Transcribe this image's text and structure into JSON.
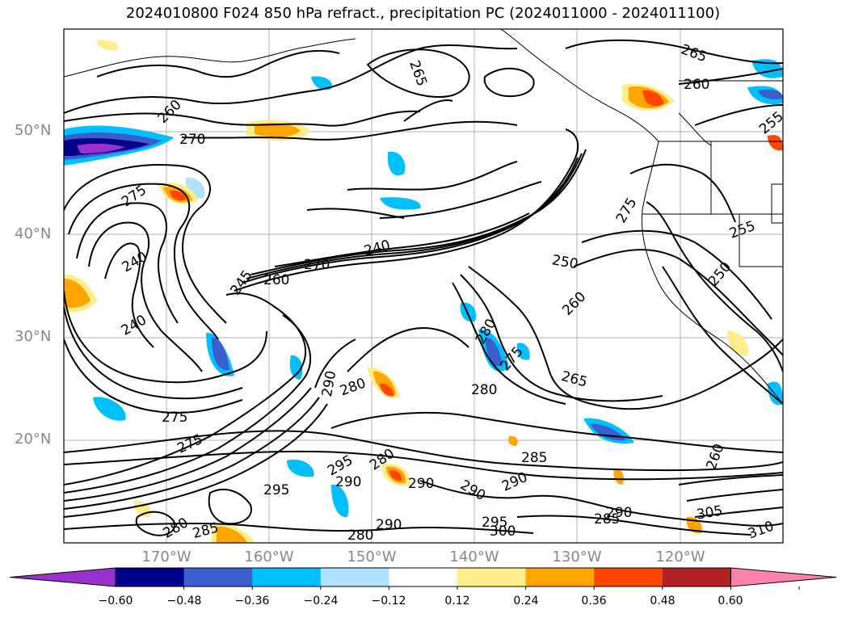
{
  "title": "2024010800 F024 850 hPa refract., precipitation PC (2024011000 - 2024011100)",
  "lat_labels": [
    "50°N",
    "40°N",
    "30°N",
    "20°N"
  ],
  "lon_labels": [
    "170°W",
    "160°W",
    "150°W",
    "140°W",
    "130°W",
    "120°W"
  ],
  "colorbar": {
    "tick_labels": [
      "−0.60",
      "−0.48",
      "−0.36",
      "−0.24",
      "−0.12",
      "0.12",
      "0.24",
      "0.36",
      "0.48",
      "0.60"
    ],
    "colors": [
      "#9932cc",
      "#00008b",
      "#3a5fcd",
      "#00bfff",
      "#b0e2ff",
      "#ffffff",
      "#ffec8b",
      "#ffa500",
      "#ff4500",
      "#b22222",
      "#ff82ab"
    ]
  },
  "contour_labels": [
    {
      "text": "265"
    },
    {
      "text": "265"
    },
    {
      "text": "260"
    },
    {
      "text": "255"
    },
    {
      "text": "260"
    },
    {
      "text": "270"
    },
    {
      "text": "275"
    },
    {
      "text": "240"
    },
    {
      "text": "240"
    },
    {
      "text": "245"
    },
    {
      "text": "240"
    },
    {
      "text": "270"
    },
    {
      "text": "260"
    },
    {
      "text": "250"
    },
    {
      "text": "275"
    },
    {
      "text": "250"
    },
    {
      "text": "255"
    },
    {
      "text": "260"
    },
    {
      "text": "265"
    },
    {
      "text": "280"
    },
    {
      "text": "280"
    },
    {
      "text": "290"
    },
    {
      "text": "275"
    },
    {
      "text": "275"
    },
    {
      "text": "285"
    },
    {
      "text": "260"
    },
    {
      "text": "295"
    },
    {
      "text": "290"
    },
    {
      "text": "290"
    },
    {
      "text": "280"
    },
    {
      "text": "290"
    },
    {
      "text": "295"
    },
    {
      "text": "290"
    },
    {
      "text": "295"
    },
    {
      "text": "300"
    },
    {
      "text": "305"
    },
    {
      "text": "310"
    },
    {
      "text": "290"
    },
    {
      "text": "280"
    },
    {
      "text": "285"
    },
    {
      "text": "280"
    },
    {
      "text": "290"
    },
    {
      "text": "285"
    },
    {
      "text": "280"
    },
    {
      "text": "275"
    }
  ]
}
